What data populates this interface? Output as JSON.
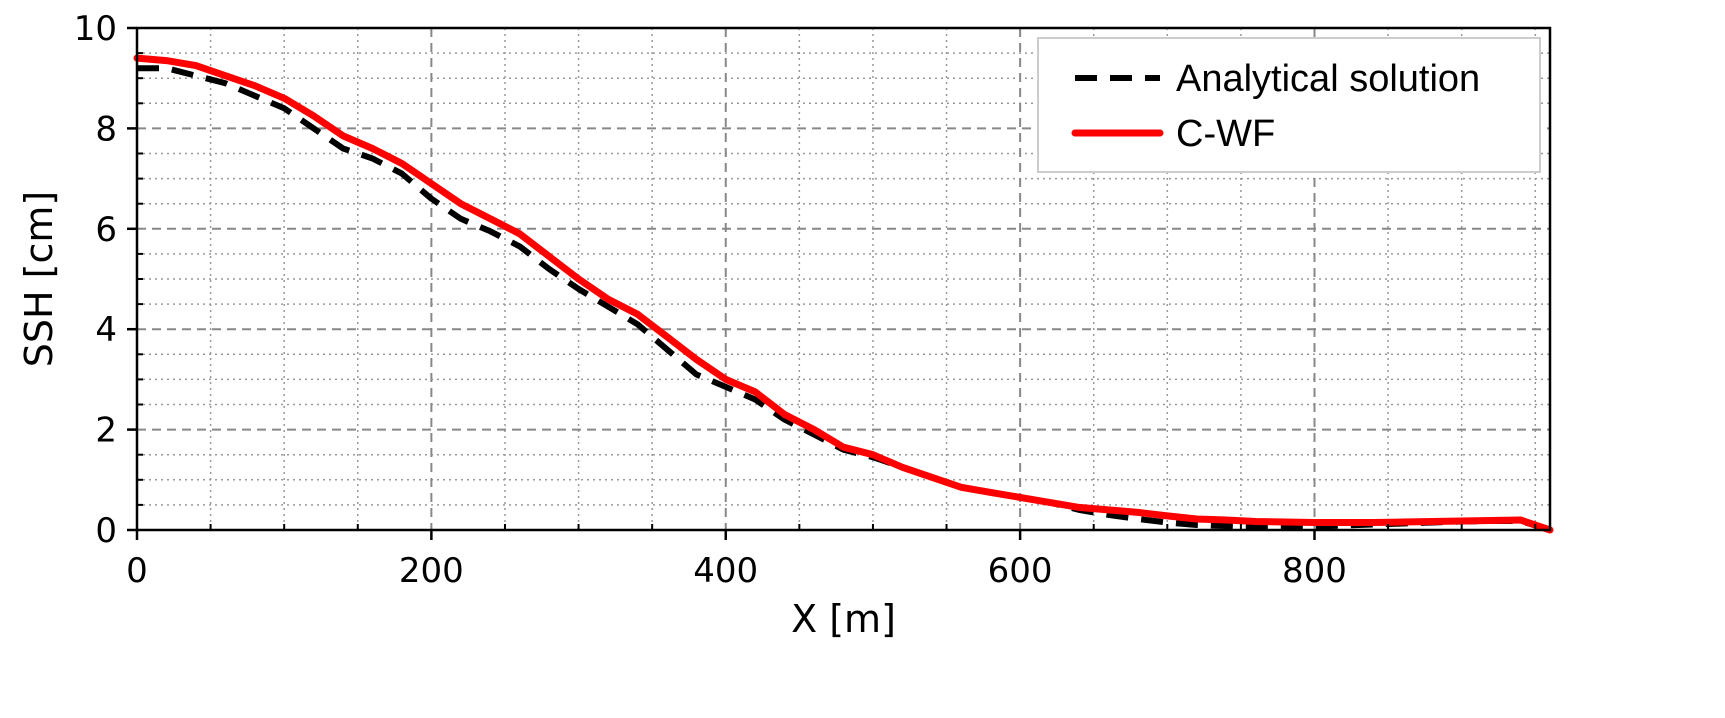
{
  "chart_data": {
    "type": "line",
    "xlabel": "X [m]",
    "ylabel": "SSH [cm]",
    "xlim": [
      0,
      960
    ],
    "ylim": [
      0,
      10
    ],
    "xticks": [
      "0",
      "200",
      "400",
      "600",
      "800"
    ],
    "yticks": [
      "0",
      "2",
      "4",
      "6",
      "8",
      "10"
    ],
    "grid": true,
    "legend": "top-right",
    "colors": {
      "analytical": "#000000",
      "cwf": "#ff0000",
      "major_grid": "#888888",
      "minor_grid": "#999999"
    },
    "series": [
      {
        "name": "Analytical solution",
        "style": "dashed",
        "x": [
          0,
          20,
          40,
          60,
          80,
          100,
          120,
          140,
          160,
          180,
          200,
          220,
          240,
          260,
          280,
          300,
          320,
          340,
          360,
          380,
          400,
          420,
          440,
          460,
          480,
          500,
          520,
          540,
          560,
          580,
          600,
          620,
          640,
          660,
          680,
          700,
          720,
          740,
          760,
          780,
          800,
          820,
          840,
          860,
          880,
          900,
          920,
          940,
          960
        ],
        "y": [
          9.2,
          9.2,
          9.05,
          8.9,
          8.65,
          8.4,
          8.0,
          7.6,
          7.4,
          7.1,
          6.6,
          6.2,
          5.95,
          5.65,
          5.2,
          4.8,
          4.45,
          4.1,
          3.6,
          3.1,
          2.85,
          2.6,
          2.2,
          1.9,
          1.6,
          1.45,
          1.25,
          1.05,
          0.85,
          0.75,
          0.65,
          0.55,
          0.4,
          0.3,
          0.22,
          0.15,
          0.1,
          0.08,
          0.06,
          0.06,
          0.07,
          0.09,
          0.11,
          0.13,
          0.15,
          0.17,
          0.18,
          0.18,
          0.0
        ]
      },
      {
        "name": "C-WF",
        "style": "solid",
        "x": [
          0,
          20,
          40,
          60,
          80,
          100,
          120,
          140,
          160,
          180,
          200,
          220,
          240,
          260,
          280,
          300,
          320,
          340,
          360,
          380,
          400,
          420,
          440,
          460,
          480,
          500,
          520,
          540,
          560,
          580,
          600,
          620,
          640,
          660,
          680,
          700,
          720,
          740,
          760,
          780,
          800,
          820,
          840,
          860,
          880,
          900,
          920,
          940,
          960
        ],
        "y": [
          9.4,
          9.35,
          9.25,
          9.05,
          8.85,
          8.6,
          8.25,
          7.85,
          7.6,
          7.3,
          6.9,
          6.5,
          6.2,
          5.9,
          5.45,
          5.0,
          4.6,
          4.3,
          3.85,
          3.4,
          3.0,
          2.75,
          2.3,
          2.0,
          1.65,
          1.5,
          1.25,
          1.05,
          0.85,
          0.75,
          0.65,
          0.55,
          0.45,
          0.4,
          0.35,
          0.28,
          0.22,
          0.2,
          0.17,
          0.16,
          0.15,
          0.15,
          0.15,
          0.16,
          0.17,
          0.18,
          0.19,
          0.2,
          0.0
        ]
      }
    ]
  }
}
